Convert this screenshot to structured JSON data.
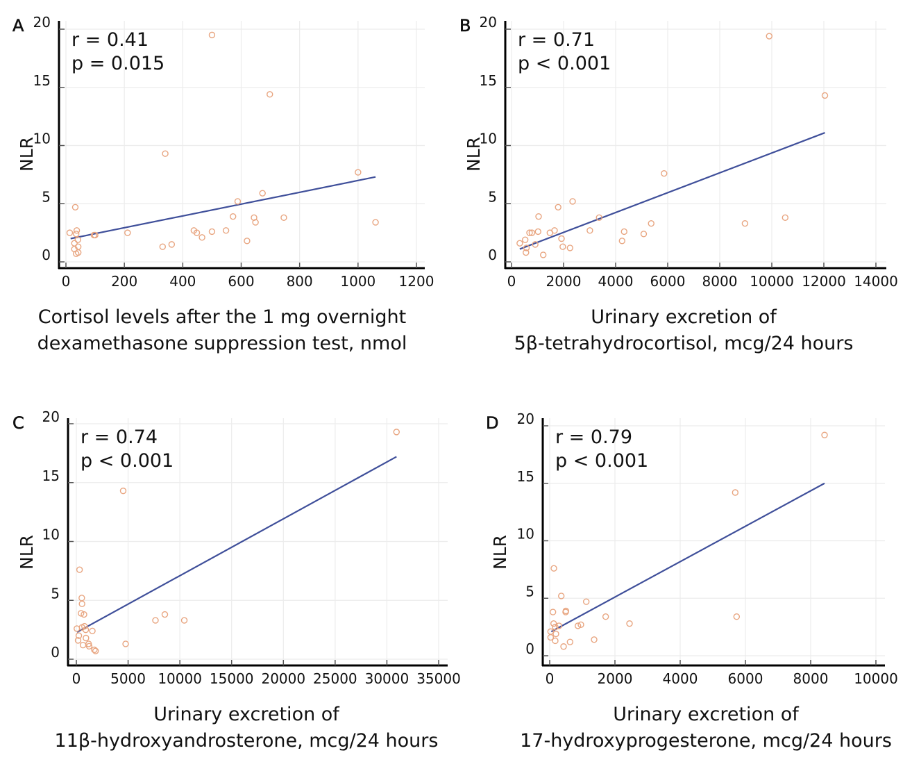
{
  "chart_data": [
    {
      "type": "scatter",
      "panel_label": "A",
      "ylabel": "NLR",
      "xlabel_lines": [
        "Cortisol levels after the 1 mg overnight",
        "dexamethasone suppression test, nmol"
      ],
      "annotation": [
        "r = 0.41",
        "p = 0.015"
      ],
      "xlim": [
        0,
        1200
      ],
      "ylim": [
        0,
        20
      ],
      "xticks": [
        0,
        200,
        400,
        600,
        800,
        1000,
        1200
      ],
      "yticks": [
        0,
        5,
        10,
        15,
        20
      ],
      "grid": true,
      "points": [
        [
          13,
          2.5
        ],
        [
          37,
          2.7
        ],
        [
          32,
          4.7
        ],
        [
          96,
          2.3
        ],
        [
          100,
          2.3
        ],
        [
          35,
          2.4
        ],
        [
          41,
          1.9
        ],
        [
          29,
          1.6
        ],
        [
          42,
          1.3
        ],
        [
          29,
          1.1
        ],
        [
          42,
          0.8
        ],
        [
          35,
          0.7
        ],
        [
          211,
          2.5
        ],
        [
          331,
          1.3
        ],
        [
          362,
          1.5
        ],
        [
          340,
          9.3
        ],
        [
          500,
          19.5
        ],
        [
          438,
          2.7
        ],
        [
          448,
          2.5
        ],
        [
          466,
          2.1
        ],
        [
          500,
          2.6
        ],
        [
          548,
          2.7
        ],
        [
          572,
          3.9
        ],
        [
          588,
          5.2
        ],
        [
          620,
          1.8
        ],
        [
          644,
          3.8
        ],
        [
          649,
          3.4
        ],
        [
          673,
          5.9
        ],
        [
          698,
          14.4
        ],
        [
          746,
          3.8
        ],
        [
          1000,
          7.7
        ],
        [
          1060,
          3.4
        ]
      ],
      "regression_line": [
        [
          16,
          2.0
        ],
        [
          1060,
          7.3
        ]
      ],
      "marker_color": "#e8a580",
      "line_color": "#3f4f9a"
    },
    {
      "type": "scatter",
      "panel_label": "B",
      "ylabel": "NLR",
      "xlabel_lines": [
        "Urinary excretion of",
        "5β-tetrahydrocortisol, mcg/24 hours"
      ],
      "annotation": [
        "r = 0.71",
        "p < 0.001"
      ],
      "xlim": [
        0,
        14000
      ],
      "ylim": [
        0,
        20
      ],
      "xticks": [
        0,
        2000,
        4000,
        6000,
        8000,
        10000,
        12000,
        14000
      ],
      "yticks": [
        0,
        5,
        10,
        15,
        20
      ],
      "grid": true,
      "points": [
        [
          317,
          1.6
        ],
        [
          525,
          1.9
        ],
        [
          574,
          1.2
        ],
        [
          554,
          0.8
        ],
        [
          693,
          2.5
        ],
        [
          782,
          2.5
        ],
        [
          911,
          1.5
        ],
        [
          1020,
          2.6
        ],
        [
          1040,
          3.9
        ],
        [
          1218,
          0.6
        ],
        [
          1475,
          2.5
        ],
        [
          1653,
          2.7
        ],
        [
          1792,
          4.7
        ],
        [
          1921,
          2.0
        ],
        [
          1970,
          1.3
        ],
        [
          2248,
          1.2
        ],
        [
          2347,
          5.2
        ],
        [
          3010,
          2.7
        ],
        [
          3366,
          3.8
        ],
        [
          4248,
          1.8
        ],
        [
          4327,
          2.6
        ],
        [
          5079,
          2.4
        ],
        [
          5366,
          3.3
        ],
        [
          5861,
          7.6
        ],
        [
          8970,
          3.3
        ],
        [
          9901,
          19.4
        ],
        [
          10515,
          3.8
        ],
        [
          12040,
          14.3
        ]
      ],
      "regression_line": [
        [
          317,
          1.1
        ],
        [
          12040,
          11.1
        ]
      ],
      "marker_color": "#e8a580",
      "line_color": "#3f4f9a"
    },
    {
      "type": "scatter",
      "panel_label": "C",
      "ylabel": "NLR",
      "xlabel_lines": [
        "Urinary excretion of",
        "11β-hydroxyandrosterone, mcg/24 hours"
      ],
      "annotation": [
        "r = 0.74",
        "p < 0.001"
      ],
      "xlim": [
        0,
        35000
      ],
      "ylim": [
        0,
        20
      ],
      "xticks": [
        0,
        5000,
        10000,
        15000,
        20000,
        25000,
        30000,
        35000
      ],
      "yticks": [
        0,
        5,
        10,
        15,
        20
      ],
      "grid": true,
      "points": [
        [
          310,
          7.6
        ],
        [
          524,
          5.2
        ],
        [
          548,
          4.7
        ],
        [
          452,
          3.9
        ],
        [
          738,
          3.8
        ],
        [
          48,
          2.6
        ],
        [
          548,
          2.7
        ],
        [
          786,
          2.8
        ],
        [
          905,
          2.5
        ],
        [
          1548,
          2.4
        ],
        [
          928,
          1.8
        ],
        [
          167,
          1.6
        ],
        [
          643,
          1.2
        ],
        [
          1190,
          1.3
        ],
        [
          1238,
          1.1
        ],
        [
          1738,
          0.8
        ],
        [
          1857,
          0.7
        ],
        [
          238,
          2.0
        ],
        [
          4524,
          14.3
        ],
        [
          4762,
          1.3
        ],
        [
          7643,
          3.3
        ],
        [
          8548,
          3.8
        ],
        [
          10429,
          3.3
        ],
        [
          30929,
          19.3
        ]
      ],
      "regression_line": [
        [
          71,
          2.3
        ],
        [
          30929,
          17.2
        ]
      ],
      "marker_color": "#e8a580",
      "line_color": "#3f4f9a"
    },
    {
      "type": "scatter",
      "panel_label": "D",
      "ylabel": "NLR",
      "xlabel_lines": [
        "Urinary excretion of",
        "17-hydroxyprogesterone, mcg/24 hours"
      ],
      "annotation": [
        "r = 0.79",
        "p < 0.001"
      ],
      "xlim": [
        0,
        10000
      ],
      "ylim": [
        0,
        20
      ],
      "xticks": [
        0,
        2000,
        4000,
        6000,
        8000,
        10000
      ],
      "yticks": [
        0,
        5,
        10,
        15,
        20
      ],
      "grid": true,
      "points": [
        [
          128,
          7.6
        ],
        [
          355,
          5.2
        ],
        [
          1121,
          4.7
        ],
        [
          99,
          3.8
        ],
        [
          496,
          3.9
        ],
        [
          489,
          3.8
        ],
        [
          1716,
          3.4
        ],
        [
          121,
          2.8
        ],
        [
          284,
          2.6
        ],
        [
          170,
          2.5
        ],
        [
          865,
          2.6
        ],
        [
          957,
          2.7
        ],
        [
          2447,
          2.8
        ],
        [
          28,
          2.1
        ],
        [
          191,
          1.9
        ],
        [
          28,
          1.6
        ],
        [
          170,
          1.3
        ],
        [
          624,
          1.2
        ],
        [
          426,
          0.8
        ],
        [
          1362,
          1.4
        ],
        [
          5688,
          14.2
        ],
        [
          5730,
          3.4
        ],
        [
          8426,
          19.2
        ]
      ],
      "regression_line": [
        [
          50,
          2.1
        ],
        [
          8426,
          15.0
        ]
      ],
      "marker_color": "#e8a580",
      "line_color": "#3f4f9a"
    }
  ]
}
